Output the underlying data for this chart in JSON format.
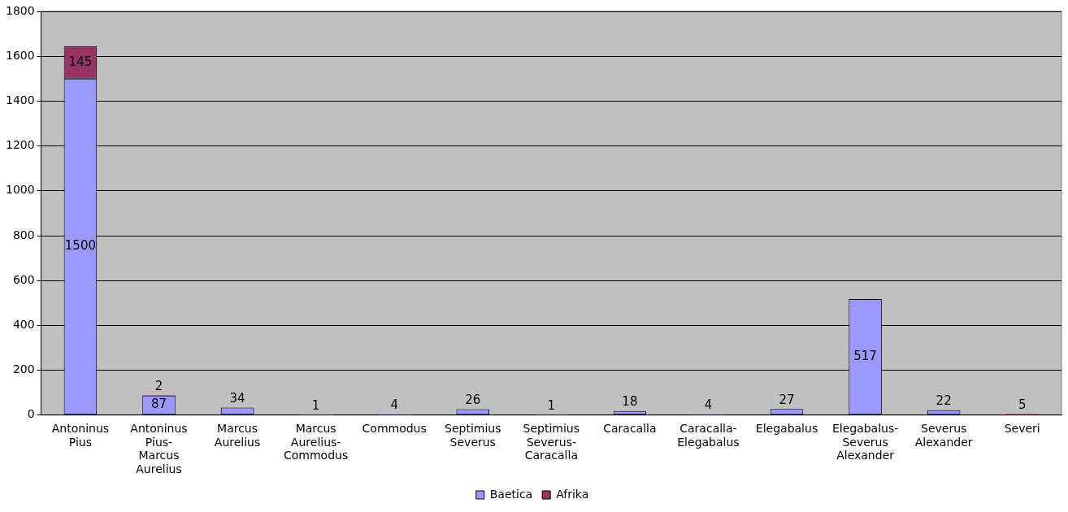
{
  "chart_data": {
    "type": "bar",
    "stacked": true,
    "categories": [
      "Antoninus Pius",
      "Antoninus Pius-Marcus Aurelius",
      "Marcus Aurelius",
      "Marcus Aurelius-Commodus",
      "Commodus",
      "Septimius Severus",
      "Septimius Severus-Caracalla",
      "Caracalla",
      "Caracalla-Elegabalus",
      "Elegabalus",
      "Elegabalus-Severus Alexander",
      "Severus Alexander",
      "Severi"
    ],
    "series": [
      {
        "name": "Baetica",
        "color": "#9999ff",
        "values": [
          1500,
          87,
          34,
          1,
          4,
          26,
          1,
          18,
          4,
          27,
          517,
          22,
          null
        ]
      },
      {
        "name": "Afrika",
        "color": "#993366",
        "values": [
          145,
          2,
          null,
          null,
          null,
          null,
          null,
          null,
          null,
          null,
          null,
          null,
          5
        ]
      }
    ],
    "ylim": [
      0,
      1800
    ],
    "yticks": [
      0,
      200,
      400,
      600,
      800,
      1000,
      1200,
      1400,
      1600,
      1800
    ],
    "grid": "y",
    "legend": "bottom",
    "data_labels": true
  }
}
